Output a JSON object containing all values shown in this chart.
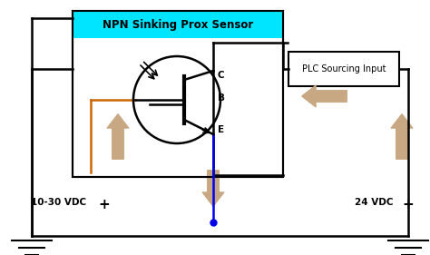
{
  "bg_color": "#ffffff",
  "sensor_box_header_color": "#00e5ff",
  "sensor_title": "NPN Sinking Prox Sensor",
  "plc_title": "PLC Sourcing Input",
  "black": "#000000",
  "orange": "#cc6600",
  "blue": "#0000ee",
  "arrow_color": "#c8a882",
  "label_10_30": "10-30 VDC",
  "label_24": "24 VDC",
  "label_B": "B",
  "label_C": "C",
  "label_E": "E"
}
